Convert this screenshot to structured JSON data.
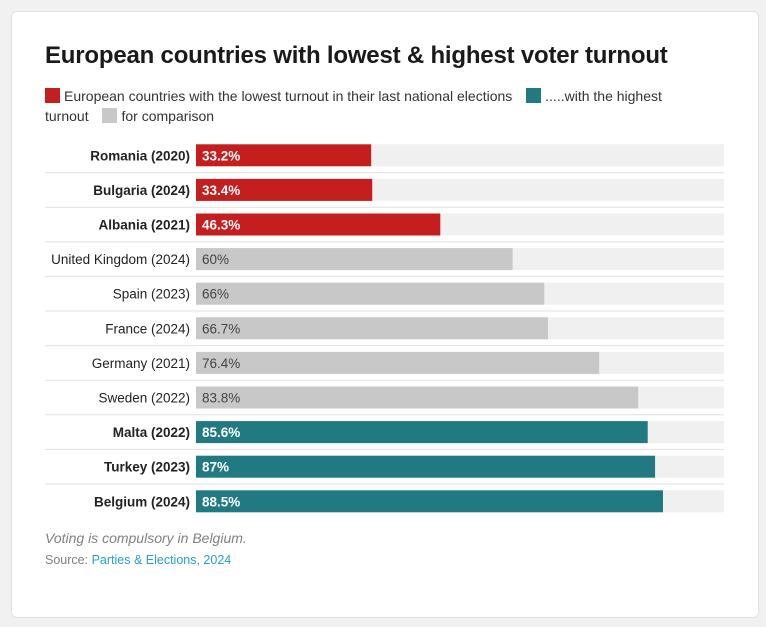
{
  "title": "European countries with lowest & highest voter turnout",
  "legend": [
    {
      "label": "European countries with the lowest turnout in their last national elections",
      "color": "#c41e1e"
    },
    {
      "label": ".....with the highest turnout",
      "color": "#217a82"
    },
    {
      "label": "for comparison",
      "color": "#c8c8c8"
    }
  ],
  "colors": {
    "low": "#c41e1e",
    "high": "#217a82",
    "comparison": "#c8c8c8",
    "track": "#f0f0f0",
    "divider": "#e0e0e0"
  },
  "footer": {
    "note": "Voting is compulsory in Belgium.",
    "source_prefix": "Source: ",
    "source_link": "Parties & Elections, 2024"
  },
  "chart_data": {
    "type": "bar",
    "orientation": "horizontal",
    "title": "European countries with lowest & highest voter turnout",
    "xlabel": "",
    "ylabel": "",
    "xlim": [
      0,
      100
    ],
    "categories": [
      "Romania (2020)",
      "Bulgaria (2024)",
      "Albania (2021)",
      "United Kingdom (2024)",
      "Spain (2023)",
      "France (2024)",
      "Germany (2021)",
      "Sweden (2022)",
      "Malta (2022)",
      "Turkey (2023)",
      "Belgium (2024)"
    ],
    "values": [
      33.2,
      33.4,
      46.3,
      60,
      66,
      66.7,
      76.4,
      83.8,
      85.6,
      87,
      88.5
    ],
    "value_labels": [
      "33.2%",
      "33.4%",
      "46.3%",
      "60%",
      "66%",
      "66.7%",
      "76.4%",
      "83.8%",
      "85.6%",
      "87%",
      "88.5%"
    ],
    "groups": [
      "low",
      "low",
      "low",
      "comparison",
      "comparison",
      "comparison",
      "comparison",
      "comparison",
      "high",
      "high",
      "high"
    ]
  }
}
